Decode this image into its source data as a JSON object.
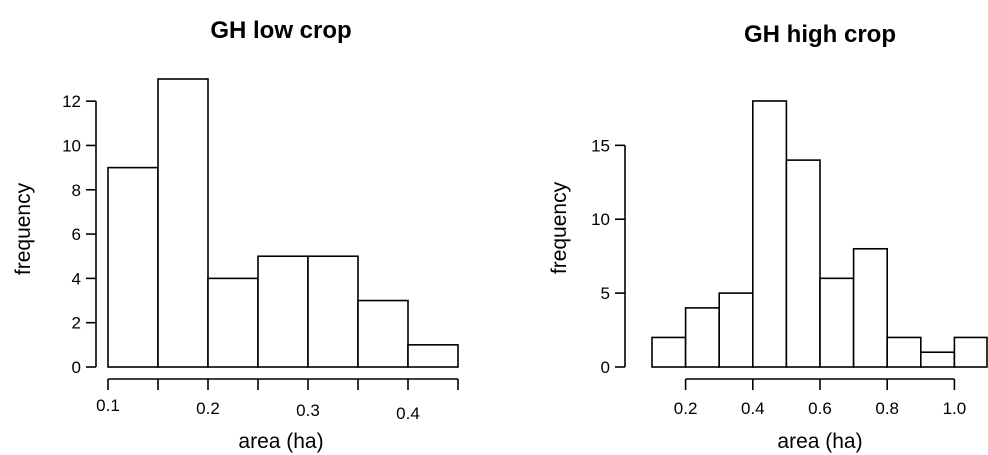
{
  "chart_data": [
    {
      "type": "bar",
      "title": "GH low crop",
      "xlabel": "area (ha)",
      "ylabel": "frequency",
      "bins": [
        {
          "from": 0.1,
          "to": 0.15,
          "count": 9
        },
        {
          "from": 0.15,
          "to": 0.2,
          "count": 13
        },
        {
          "from": 0.2,
          "to": 0.25,
          "count": 4
        },
        {
          "from": 0.25,
          "to": 0.3,
          "count": 5
        },
        {
          "from": 0.3,
          "to": 0.35,
          "count": 5
        },
        {
          "from": 0.35,
          "to": 0.4,
          "count": 3
        },
        {
          "from": 0.4,
          "to": 0.45,
          "count": 1
        }
      ],
      "xticks": [
        {
          "value": 0.1,
          "label": "0.1"
        },
        {
          "value": 0.15,
          "label": ""
        },
        {
          "value": 0.2,
          "label": "0.2"
        },
        {
          "value": 0.25,
          "label": ""
        },
        {
          "value": 0.3,
          "label": "0.3"
        },
        {
          "value": 0.35,
          "label": ""
        },
        {
          "value": 0.4,
          "label": "0.4"
        },
        {
          "value": 0.45,
          "label": ""
        }
      ],
      "yticks": [
        {
          "value": 0,
          "label": "0"
        },
        {
          "value": 2,
          "label": "2"
        },
        {
          "value": 4,
          "label": "4"
        },
        {
          "value": 6,
          "label": "6"
        },
        {
          "value": 8,
          "label": "8"
        },
        {
          "value": 10,
          "label": "10"
        },
        {
          "value": 12,
          "label": "12"
        }
      ],
      "xlim": [
        0.1,
        0.45
      ],
      "ylim": [
        0,
        13
      ],
      "grid": false
    },
    {
      "type": "bar",
      "title": "GH high crop",
      "xlabel": "area (ha)",
      "ylabel": "frequency",
      "bins": [
        {
          "from": 0.1,
          "to": 0.2,
          "count": 2
        },
        {
          "from": 0.2,
          "to": 0.3,
          "count": 4
        },
        {
          "from": 0.3,
          "to": 0.4,
          "count": 5
        },
        {
          "from": 0.4,
          "to": 0.5,
          "count": 18
        },
        {
          "from": 0.5,
          "to": 0.6,
          "count": 14
        },
        {
          "from": 0.6,
          "to": 0.7,
          "count": 6
        },
        {
          "from": 0.7,
          "to": 0.8,
          "count": 8
        },
        {
          "from": 0.8,
          "to": 0.9,
          "count": 2
        },
        {
          "from": 0.9,
          "to": 1.0,
          "count": 1
        },
        {
          "from": 1.0,
          "to": 1.1,
          "count": 2
        }
      ],
      "xticks": [
        {
          "value": 0.2,
          "label": "0.2"
        },
        {
          "value": 0.4,
          "label": "0.4"
        },
        {
          "value": 0.6,
          "label": "0.6"
        },
        {
          "value": 0.8,
          "label": "0.8"
        },
        {
          "value": 1.0,
          "label": "1.0"
        }
      ],
      "yticks": [
        {
          "value": 0,
          "label": "0"
        },
        {
          "value": 5,
          "label": "5"
        },
        {
          "value": 10,
          "label": "10"
        },
        {
          "value": 15,
          "label": "15"
        }
      ],
      "xlim": [
        0.1,
        1.1
      ],
      "ylim": [
        0,
        18
      ],
      "grid": false
    }
  ]
}
